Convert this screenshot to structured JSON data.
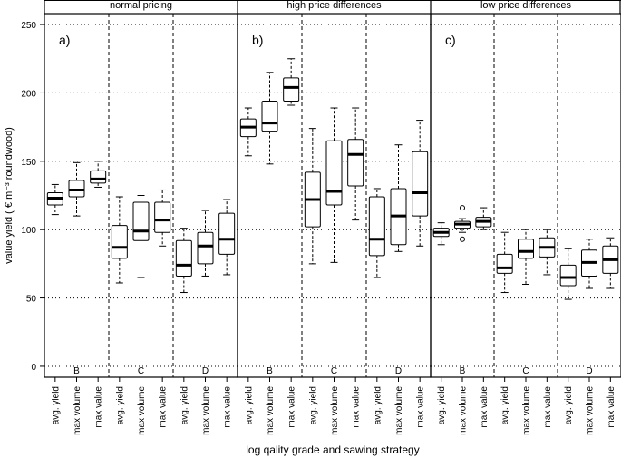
{
  "chart_data": {
    "type": "boxplot",
    "ylabel": "value yield ( € m⁻³ roundwood)",
    "xlabel": "log qality grade and sawing strategy",
    "ylim": [
      -8,
      258
    ],
    "yticks": [
      0,
      50,
      100,
      150,
      200,
      250
    ],
    "grid": "horizontal dotted",
    "grades": [
      "B",
      "C",
      "D"
    ],
    "strategies": [
      "avg. yield",
      "max volume",
      "max value"
    ],
    "panels": [
      {
        "title": "normal pricing",
        "letter": "a)",
        "boxes": [
          {
            "grade": "B",
            "strategy": "avg. yield",
            "min": 111,
            "q1": 118,
            "median": 123,
            "q3": 127,
            "max": 133
          },
          {
            "grade": "B",
            "strategy": "max volume",
            "min": 110,
            "q1": 124,
            "median": 129,
            "q3": 136,
            "max": 149
          },
          {
            "grade": "B",
            "strategy": "max value",
            "min": 131,
            "q1": 134,
            "median": 137,
            "q3": 143,
            "max": 150
          },
          {
            "grade": "C",
            "strategy": "avg. yield",
            "min": 61,
            "q1": 79,
            "median": 87,
            "q3": 103,
            "max": 124
          },
          {
            "grade": "C",
            "strategy": "max volume",
            "min": 65,
            "q1": 92,
            "median": 99,
            "q3": 120,
            "max": 125
          },
          {
            "grade": "C",
            "strategy": "max value",
            "min": 88,
            "q1": 98,
            "median": 107,
            "q3": 120,
            "max": 129
          },
          {
            "grade": "D",
            "strategy": "avg. yield",
            "min": 54,
            "q1": 66,
            "median": 74,
            "q3": 92,
            "max": 101
          },
          {
            "grade": "D",
            "strategy": "max volume",
            "min": 66,
            "q1": 75,
            "median": 88,
            "q3": 98,
            "max": 114
          },
          {
            "grade": "D",
            "strategy": "max value",
            "min": 67,
            "q1": 82,
            "median": 93,
            "q3": 112,
            "max": 122
          }
        ]
      },
      {
        "title": "high price differences",
        "letter": "b)",
        "boxes": [
          {
            "grade": "B",
            "strategy": "avg. yield",
            "min": 154,
            "q1": 168,
            "median": 175,
            "q3": 181,
            "max": 189
          },
          {
            "grade": "B",
            "strategy": "max volume",
            "min": 148,
            "q1": 172,
            "median": 178,
            "q3": 194,
            "max": 215
          },
          {
            "grade": "B",
            "strategy": "max value",
            "min": 191,
            "q1": 194,
            "median": 204,
            "q3": 211,
            "max": 225
          },
          {
            "grade": "C",
            "strategy": "avg. yield",
            "min": 75,
            "q1": 102,
            "median": 122,
            "q3": 142,
            "max": 174
          },
          {
            "grade": "C",
            "strategy": "max volume",
            "min": 76,
            "q1": 118,
            "median": 128,
            "q3": 165,
            "max": 189
          },
          {
            "grade": "C",
            "strategy": "max value",
            "min": 107,
            "q1": 132,
            "median": 155,
            "q3": 166,
            "max": 189
          },
          {
            "grade": "D",
            "strategy": "avg. yield",
            "min": 65,
            "q1": 81,
            "median": 93,
            "q3": 124,
            "max": 130
          },
          {
            "grade": "D",
            "strategy": "max volume",
            "min": 84,
            "q1": 89,
            "median": 110,
            "q3": 130,
            "max": 162
          },
          {
            "grade": "D",
            "strategy": "max value",
            "min": 88,
            "q1": 110,
            "median": 127,
            "q3": 157,
            "max": 180
          }
        ]
      },
      {
        "title": "low price differences",
        "letter": "c)",
        "boxes": [
          {
            "grade": "B",
            "strategy": "avg. yield",
            "min": 89,
            "q1": 95,
            "median": 98,
            "q3": 101,
            "max": 105
          },
          {
            "grade": "B",
            "strategy": "max volume",
            "min": 98,
            "q1": 101,
            "median": 104,
            "q3": 106,
            "max": 108,
            "outliers": [
              93,
              116
            ]
          },
          {
            "grade": "B",
            "strategy": "max value",
            "min": 100,
            "q1": 102,
            "median": 106,
            "q3": 109,
            "max": 116
          },
          {
            "grade": "C",
            "strategy": "avg. yield",
            "min": 54,
            "q1": 68,
            "median": 72,
            "q3": 82,
            "max": 98
          },
          {
            "grade": "C",
            "strategy": "max volume",
            "min": 60,
            "q1": 79,
            "median": 84,
            "q3": 93,
            "max": 100
          },
          {
            "grade": "C",
            "strategy": "max value",
            "min": 67,
            "q1": 80,
            "median": 87,
            "q3": 94,
            "max": 100
          },
          {
            "grade": "D",
            "strategy": "avg. yield",
            "min": 49,
            "q1": 59,
            "median": 65,
            "q3": 74,
            "max": 86
          },
          {
            "grade": "D",
            "strategy": "max volume",
            "min": 57,
            "q1": 66,
            "median": 76,
            "q3": 85,
            "max": 93
          },
          {
            "grade": "D",
            "strategy": "max value",
            "min": 57,
            "q1": 68,
            "median": 78,
            "q3": 88,
            "max": 94
          }
        ]
      }
    ]
  }
}
